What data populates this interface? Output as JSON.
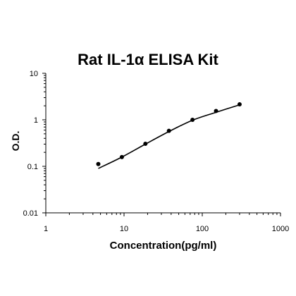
{
  "chart_data": {
    "type": "scatter",
    "title": "Rat IL-1α ELISA Kit",
    "xlabel": "Concentration(pg/ml)",
    "ylabel": "O.D.",
    "x_scale": "log",
    "y_scale": "log",
    "xlim": [
      1,
      1000
    ],
    "ylim": [
      0.01,
      10
    ],
    "x_ticks": [
      "1",
      "10",
      "100",
      "1000"
    ],
    "y_ticks": [
      "0.01",
      "0.1",
      "1",
      "10"
    ],
    "grid": false,
    "legend": "none",
    "series": [
      {
        "x": [
          4.69,
          9.38,
          18.75,
          37.5,
          75,
          150,
          300
        ],
        "y": [
          0.112,
          0.158,
          0.305,
          0.58,
          1.0,
          1.55,
          2.15
        ]
      }
    ],
    "fit_curve": {
      "x": [
        4.69,
        9.38,
        18.75,
        37.5,
        75,
        150,
        300
      ],
      "y": [
        0.09,
        0.158,
        0.3,
        0.56,
        0.98,
        1.45,
        2.1
      ]
    },
    "colors": {
      "line": "#000000",
      "marker": "#000000",
      "axis": "#000000"
    }
  }
}
